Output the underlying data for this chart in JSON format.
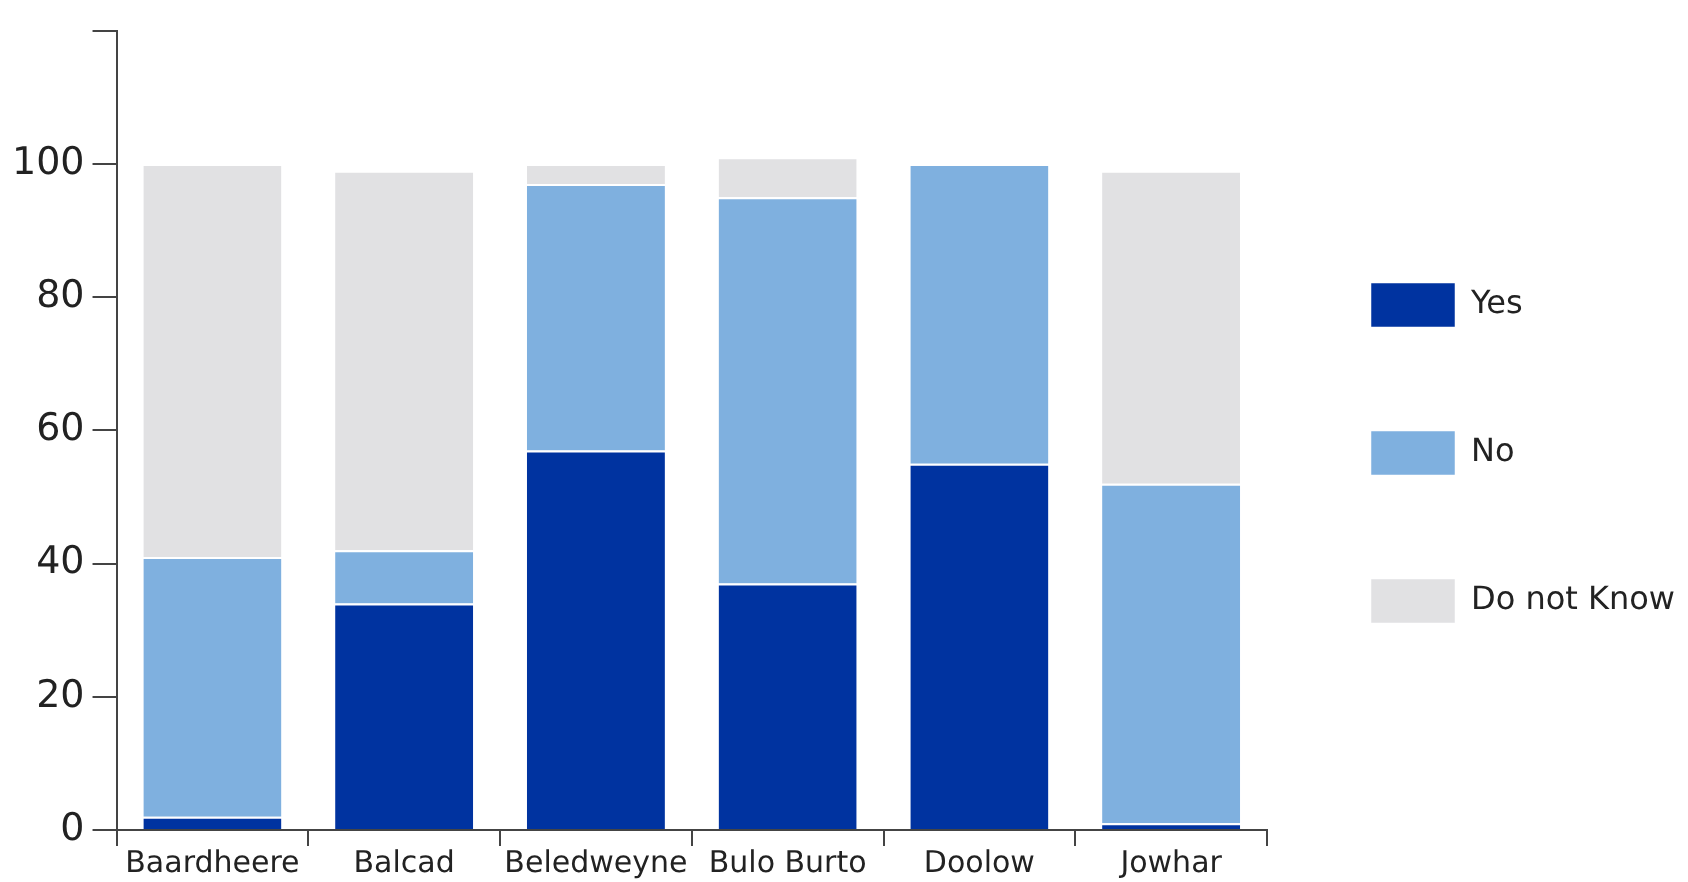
{
  "chart_data": {
    "type": "bar",
    "stacked": true,
    "categories": [
      "Baardheere",
      "Balcad",
      "Beledweyne",
      "Bulo Burto",
      "Doolow",
      "Jowhar"
    ],
    "series": [
      {
        "name": "Yes",
        "color": "#0033a0",
        "values": [
          2,
          34,
          57,
          37,
          55,
          1
        ]
      },
      {
        "name": "No",
        "color": "#7fb0df",
        "values": [
          39,
          8,
          40,
          58,
          45,
          51
        ]
      },
      {
        "name": "Do not Know",
        "color": "#e1e1e3",
        "values": [
          59,
          57,
          3,
          6,
          0,
          47
        ]
      }
    ],
    "ylim": [
      0,
      120
    ],
    "yticks": [
      0,
      20,
      40,
      60,
      80,
      100,
      {
        "value": 120,
        "label": null
      }
    ],
    "grid": false,
    "legend": "right"
  }
}
